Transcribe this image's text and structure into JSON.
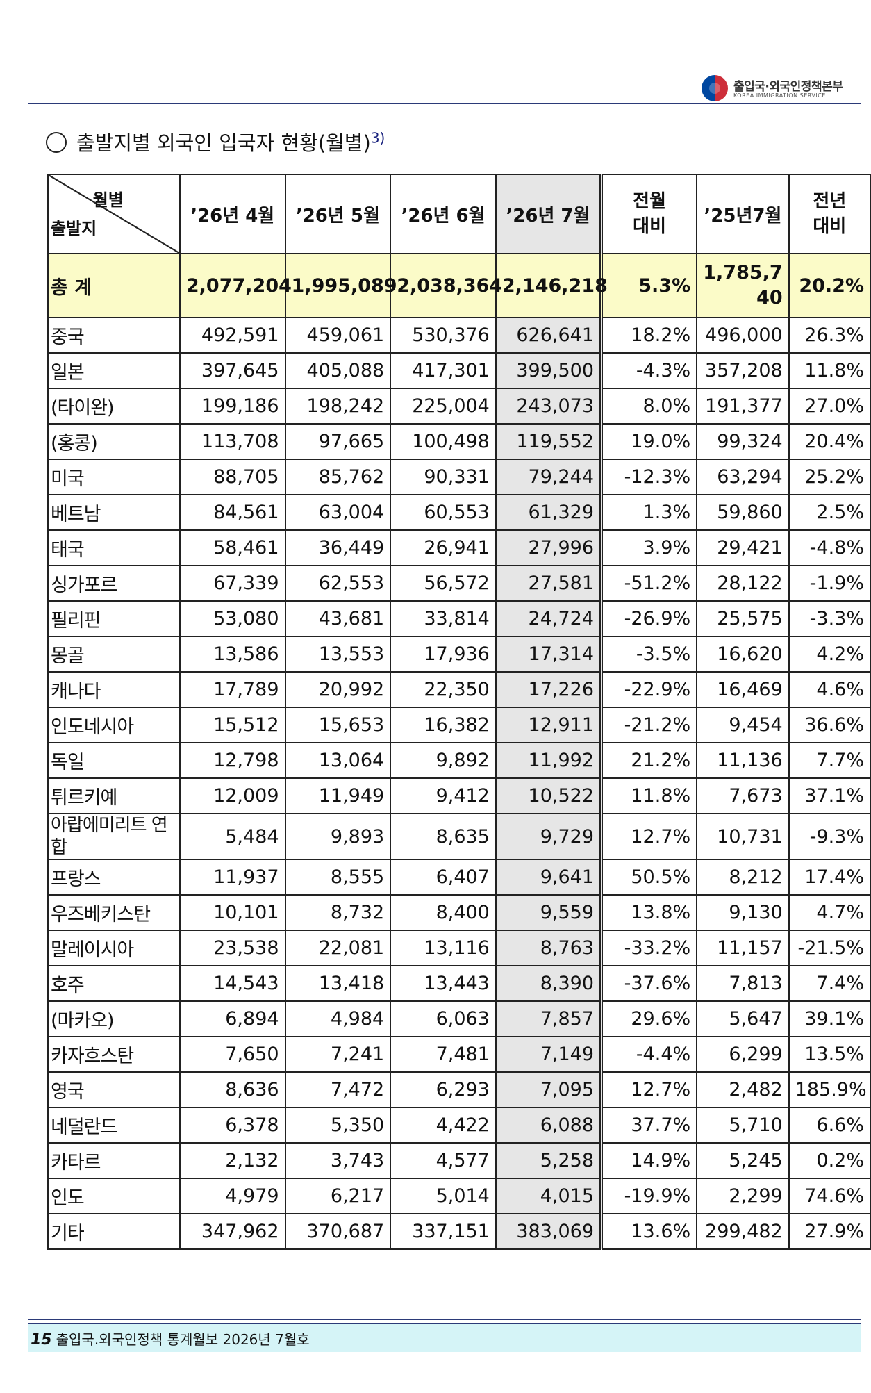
{
  "header": {
    "logo_ko": "출입국·외국인정책본부",
    "logo_en": "KOREA IMMIGRATION SERVICE"
  },
  "section": {
    "title": "출발지별 외국인 입국자 현황(월별)",
    "footnote": "3)"
  },
  "table": {
    "corner_top": "월별",
    "corner_bottom": "출발지",
    "columns": [
      "’26년 4월",
      "’26년 5월",
      "’26년 6월",
      "’26년 7월",
      "전월\n대비",
      "’25년7월",
      "전년\n대비"
    ],
    "col_prev_month": [
      "전월",
      "대비"
    ],
    "col_prev_year": [
      "전년",
      "대비"
    ],
    "total": {
      "name": "총    계",
      "values": [
        "2,077,204",
        "1,995,089",
        "2,038,364",
        "2,146,218",
        "5.3%",
        "1,785,740",
        "20.2%"
      ]
    },
    "rows": [
      {
        "name": "중국",
        "values": [
          "492,591",
          "459,061",
          "530,376",
          "626,641",
          "18.2%",
          "496,000",
          "26.3%"
        ]
      },
      {
        "name": "일본",
        "values": [
          "397,645",
          "405,088",
          "417,301",
          "399,500",
          "-4.3%",
          "357,208",
          "11.8%"
        ]
      },
      {
        "name": "(타이완)",
        "values": [
          "199,186",
          "198,242",
          "225,004",
          "243,073",
          "8.0%",
          "191,377",
          "27.0%"
        ]
      },
      {
        "name": "(홍콩)",
        "values": [
          "113,708",
          "97,665",
          "100,498",
          "119,552",
          "19.0%",
          "99,324",
          "20.4%"
        ]
      },
      {
        "name": "미국",
        "values": [
          "88,705",
          "85,762",
          "90,331",
          "79,244",
          "-12.3%",
          "63,294",
          "25.2%"
        ]
      },
      {
        "name": "베트남",
        "values": [
          "84,561",
          "63,004",
          "60,553",
          "61,329",
          "1.3%",
          "59,860",
          "2.5%"
        ]
      },
      {
        "name": "태국",
        "values": [
          "58,461",
          "36,449",
          "26,941",
          "27,996",
          "3.9%",
          "29,421",
          "-4.8%"
        ]
      },
      {
        "name": "싱가포르",
        "values": [
          "67,339",
          "62,553",
          "56,572",
          "27,581",
          "-51.2%",
          "28,122",
          "-1.9%"
        ]
      },
      {
        "name": "필리핀",
        "values": [
          "53,080",
          "43,681",
          "33,814",
          "24,724",
          "-26.9%",
          "25,575",
          "-3.3%"
        ]
      },
      {
        "name": "몽골",
        "values": [
          "13,586",
          "13,553",
          "17,936",
          "17,314",
          "-3.5%",
          "16,620",
          "4.2%"
        ]
      },
      {
        "name": "캐나다",
        "values": [
          "17,789",
          "20,992",
          "22,350",
          "17,226",
          "-22.9%",
          "16,469",
          "4.6%"
        ]
      },
      {
        "name": "인도네시아",
        "values": [
          "15,512",
          "15,653",
          "16,382",
          "12,911",
          "-21.2%",
          "9,454",
          "36.6%"
        ]
      },
      {
        "name": "독일",
        "values": [
          "12,798",
          "13,064",
          "9,892",
          "11,992",
          "21.2%",
          "11,136",
          "7.7%"
        ]
      },
      {
        "name": "튀르키예",
        "values": [
          "12,009",
          "11,949",
          "9,412",
          "10,522",
          "11.8%",
          "7,673",
          "37.1%"
        ]
      },
      {
        "name": "아랍에미리트 연합",
        "values": [
          "5,484",
          "9,893",
          "8,635",
          "9,729",
          "12.7%",
          "10,731",
          "-9.3%"
        ]
      },
      {
        "name": "프랑스",
        "values": [
          "11,937",
          "8,555",
          "6,407",
          "9,641",
          "50.5%",
          "8,212",
          "17.4%"
        ]
      },
      {
        "name": "우즈베키스탄",
        "values": [
          "10,101",
          "8,732",
          "8,400",
          "9,559",
          "13.8%",
          "9,130",
          "4.7%"
        ]
      },
      {
        "name": "말레이시아",
        "values": [
          "23,538",
          "22,081",
          "13,116",
          "8,763",
          "-33.2%",
          "11,157",
          "-21.5%"
        ]
      },
      {
        "name": "호주",
        "values": [
          "14,543",
          "13,418",
          "13,443",
          "8,390",
          "-37.6%",
          "7,813",
          "7.4%"
        ]
      },
      {
        "name": "(마카오)",
        "values": [
          "6,894",
          "4,984",
          "6,063",
          "7,857",
          "29.6%",
          "5,647",
          "39.1%"
        ]
      },
      {
        "name": "카자흐스탄",
        "values": [
          "7,650",
          "7,241",
          "7,481",
          "7,149",
          "-4.4%",
          "6,299",
          "13.5%"
        ]
      },
      {
        "name": "영국",
        "values": [
          "8,636",
          "7,472",
          "6,293",
          "7,095",
          "12.7%",
          "2,482",
          "185.9%"
        ]
      },
      {
        "name": "네덜란드",
        "values": [
          "6,378",
          "5,350",
          "4,422",
          "6,088",
          "37.7%",
          "5,710",
          "6.6%"
        ]
      },
      {
        "name": "카타르",
        "values": [
          "2,132",
          "3,743",
          "4,577",
          "5,258",
          "14.9%",
          "5,245",
          "0.2%"
        ]
      },
      {
        "name": "인도",
        "values": [
          "4,979",
          "6,217",
          "5,014",
          "4,015",
          "-19.9%",
          "2,299",
          "74.6%"
        ]
      },
      {
        "name": "기타",
        "values": [
          "347,962",
          "370,687",
          "337,151",
          "383,069",
          "13.6%",
          "299,482",
          "27.9%"
        ]
      }
    ]
  },
  "footer": {
    "page_number": "15",
    "text": "출입국.외국인정책 통계월보 2026년 7월호"
  }
}
